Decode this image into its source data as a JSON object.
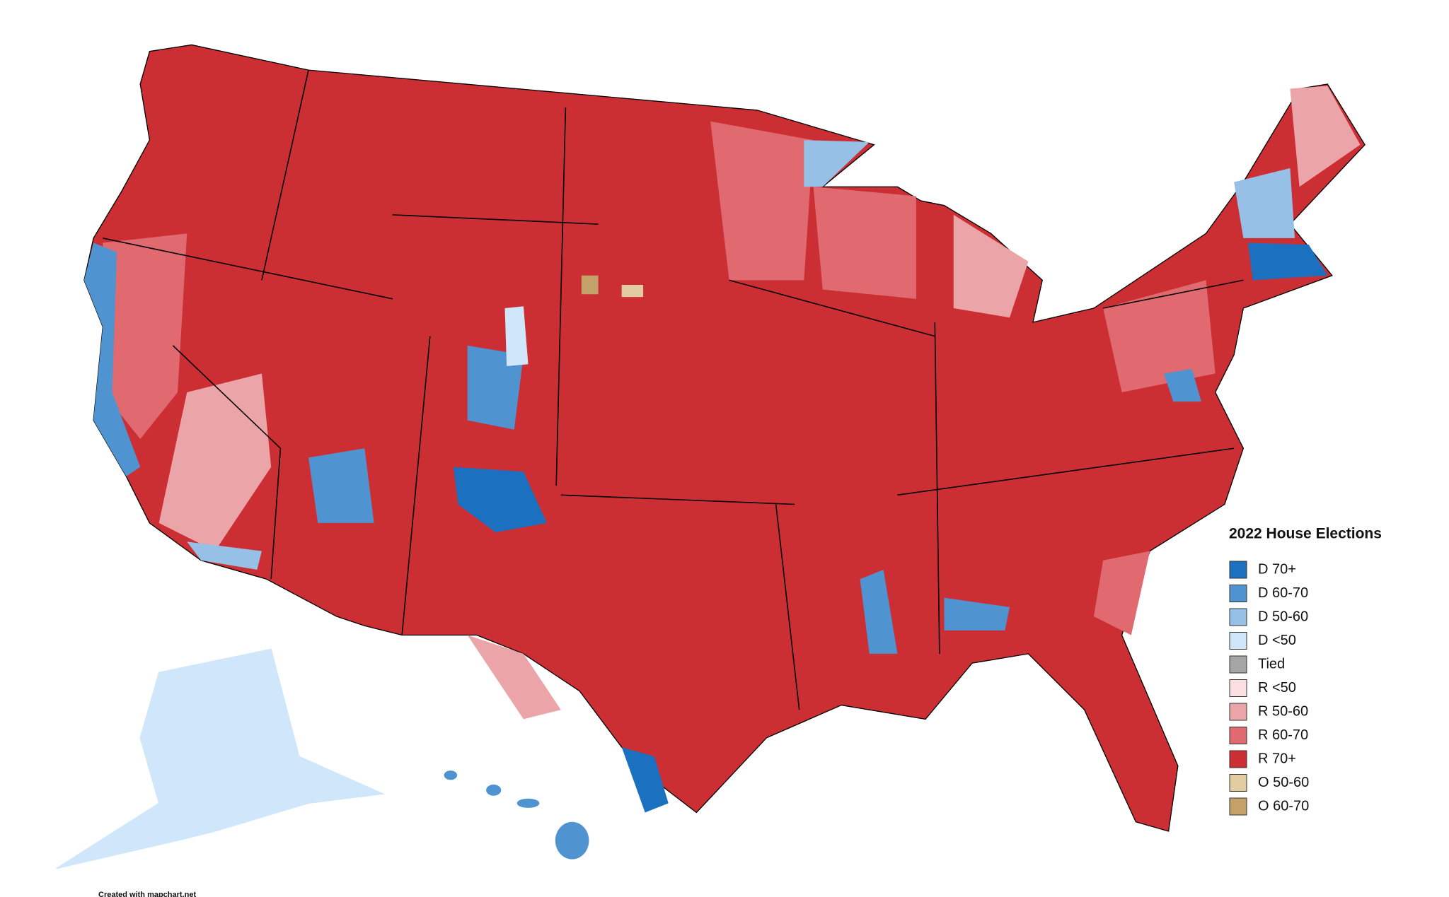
{
  "legend": {
    "title": "2022 House Elections",
    "items": [
      {
        "label": "D 70+",
        "color": "#1b70c0"
      },
      {
        "label": "D 60-70",
        "color": "#4f94d0"
      },
      {
        "label": "D 50-60",
        "color": "#97c0e6"
      },
      {
        "label": "D <50",
        "color": "#cfe6fb"
      },
      {
        "label": "Tied",
        "color": "#a6a6a6"
      },
      {
        "label": "R <50",
        "color": "#fcdfe0"
      },
      {
        "label": "R 50-60",
        "color": "#eba5a8"
      },
      {
        "label": "R 60-70",
        "color": "#e06a6f"
      },
      {
        "label": "R 70+",
        "color": "#cc2f33"
      },
      {
        "label": "O 50-60",
        "color": "#e2cda3"
      },
      {
        "label": "O 60-70",
        "color": "#c4a169"
      }
    ]
  },
  "footer": "Created with mapchart.net"
}
